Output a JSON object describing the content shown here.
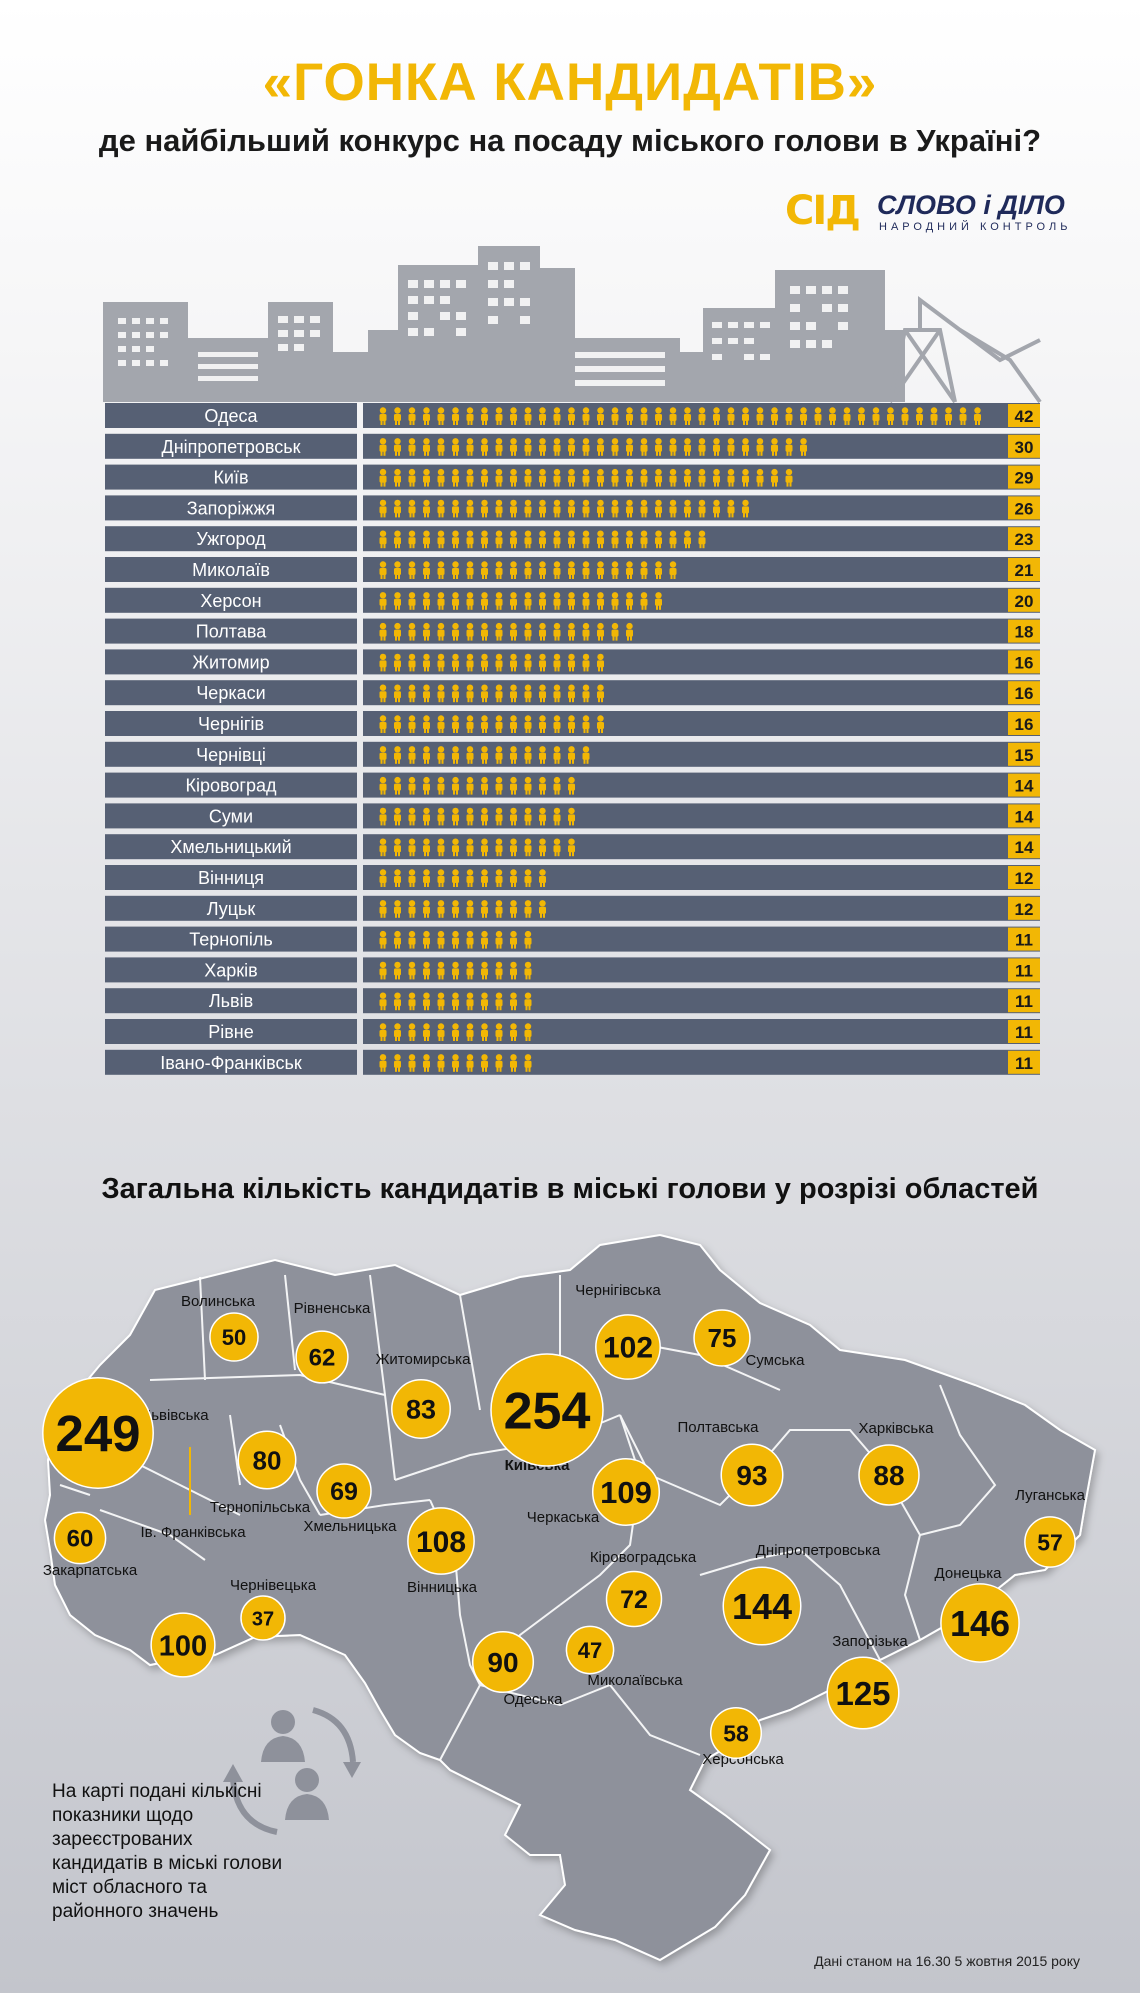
{
  "header": {
    "title": "«ГОНКА КАНДИДАТІВ»",
    "subtitle": "де найбільший конкурс на посаду міського голови в Україні?"
  },
  "logo": {
    "mark": "СІД",
    "name": "СЛОВО і ДІЛО",
    "tagline": "НАРОДНИЙ КОНТРОЛЬ"
  },
  "colors": {
    "accent": "#f2b705",
    "bar_track": "#566074",
    "label_bg": "#566074",
    "skyline": "#a3a6ad",
    "map_fill": "#8e919b",
    "map_stroke": "#ffffff"
  },
  "icons": {
    "person": "person-icon",
    "cycle": "people-cycle-icon"
  },
  "chart_data": [
    {
      "type": "bar",
      "orientation": "horizontal",
      "categories": [
        "Одеса",
        "Дніпропетровськ",
        "Київ",
        "Запоріжжя",
        "Ужгород",
        "Миколаїв",
        "Херсон",
        "Полтава",
        "Житомир",
        "Черкаси",
        "Чернігів",
        "Чернівці",
        "Кіровоград",
        "Суми",
        "Хмельницький",
        "Вінниця",
        "Луцьк",
        "Тернопіль",
        "Харків",
        "Львів",
        "Рівне",
        "Івано-Франківськ"
      ],
      "values": [
        42,
        30,
        29,
        26,
        23,
        21,
        20,
        18,
        16,
        16,
        16,
        15,
        14,
        14,
        14,
        12,
        12,
        11,
        11,
        11,
        11,
        11
      ],
      "xlim": [
        0,
        45
      ]
    },
    {
      "type": "map",
      "title": "Загальна кількість кандидатів в міські голови у розрізі областей",
      "regions": [
        {
          "name": "Волинська",
          "value": 50
        },
        {
          "name": "Рівненська",
          "value": 62
        },
        {
          "name": "Житомирська",
          "value": 83
        },
        {
          "name": "Київська",
          "value": 254
        },
        {
          "name": "Чернігівська",
          "value": 102
        },
        {
          "name": "Сумська",
          "value": 75
        },
        {
          "name": "Львівська",
          "value": 249
        },
        {
          "name": "Тернопільська",
          "value": 80
        },
        {
          "name": "Хмельницька",
          "value": 69
        },
        {
          "name": "Вінницька",
          "value": 108
        },
        {
          "name": "Черкаська",
          "value": 109
        },
        {
          "name": "Полтавська",
          "value": 93
        },
        {
          "name": "Харківська",
          "value": 88
        },
        {
          "name": "Луганська",
          "value": 57
        },
        {
          "name": "Закарпатська",
          "value": 60
        },
        {
          "name": "Ів. Франківська",
          "value": 100
        },
        {
          "name": "Чернівецька",
          "value": 37
        },
        {
          "name": "Кіровоградська",
          "value": 72
        },
        {
          "name": "Дніпропетровська",
          "value": 144
        },
        {
          "name": "Донецька",
          "value": 146
        },
        {
          "name": "Одеська",
          "value": 90
        },
        {
          "name": "Миколаївська",
          "value": 47
        },
        {
          "name": "Запорізька",
          "value": 125
        },
        {
          "name": "Херсонська",
          "value": 58
        }
      ]
    }
  ],
  "note": "На карті подані кількісні показники щодо зареєстрованих кандидатів в міські голови міст обласного та районного значень",
  "source": "Дані станом на 16.30 5 жовтня 2015 року"
}
